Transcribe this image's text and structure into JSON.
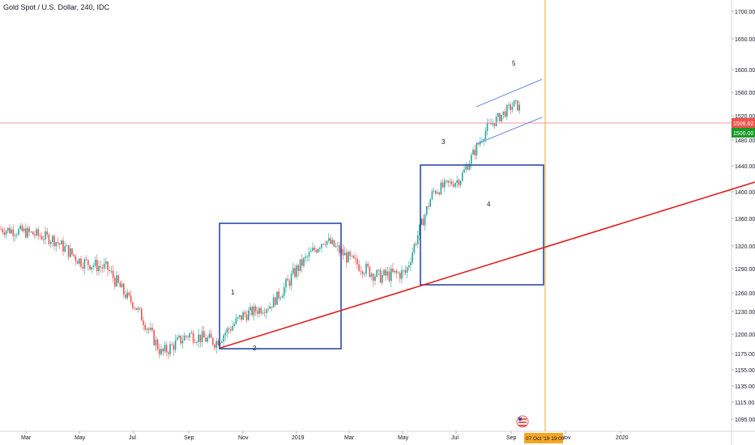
{
  "chart_data": {
    "type": "candlestick",
    "title": "Gold Spot / U.S. Dollar, 240, IDC",
    "price_axis": {
      "ticks": [
        "1700.00",
        "1650.00",
        "1600.00",
        "1560.00",
        "1520.00",
        "1480.00",
        "1440.00",
        "1400.00",
        "1360.00",
        "1320.00",
        "1290.00",
        "1260.00",
        "1230.00",
        "1200.00",
        "1175.00",
        "1155.00",
        "1135.00",
        "1115.00",
        "1095.00"
      ]
    },
    "time_axis": {
      "ticks": [
        "Mar",
        "May",
        "Jul",
        "Sep",
        "Nov",
        "2019",
        "Mar",
        "May",
        "Jul",
        "Sep",
        "Nov",
        "2020"
      ]
    },
    "last_price": "1506.62",
    "level_price": "1500.00",
    "date_label": "07 Oct '19  19:00",
    "wave_labels": [
      "1",
      "2",
      "3",
      "4",
      "5"
    ],
    "series": [
      {
        "values_approx": [
          {
            "t": "2018-03",
            "p": 1340
          },
          {
            "t": "2018-04",
            "p": 1330
          },
          {
            "t": "2018-05",
            "p": 1300
          },
          {
            "t": "2018-06",
            "p": 1290
          },
          {
            "t": "2018-07",
            "p": 1240
          },
          {
            "t": "2018-08",
            "p": 1175
          },
          {
            "t": "2018-09",
            "p": 1200
          },
          {
            "t": "2018-10",
            "p": 1190
          },
          {
            "t": "2018-11",
            "p": 1225
          },
          {
            "t": "2018-12",
            "p": 1240
          },
          {
            "t": "2019-01",
            "p": 1290
          },
          {
            "t": "2019-02",
            "p": 1330
          },
          {
            "t": "2019-03",
            "p": 1300
          },
          {
            "t": "2019-04",
            "p": 1280
          },
          {
            "t": "2019-05",
            "p": 1285
          },
          {
            "t": "2019-06",
            "p": 1400
          },
          {
            "t": "2019-07",
            "p": 1420
          },
          {
            "t": "2019-08",
            "p": 1500
          },
          {
            "t": "2019-09",
            "p": 1540
          },
          {
            "t": "2019-10",
            "p": 1506
          }
        ]
      }
    ],
    "colors": {
      "up": "#26a69a",
      "down": "#ef5350",
      "box": "#1e3fa0",
      "trendline": "#e01f1f",
      "channel": "#6b8be0",
      "vline": "#f5a623",
      "last_price_bg": "#ef5350",
      "level_bg": "#1a9a24"
    }
  }
}
